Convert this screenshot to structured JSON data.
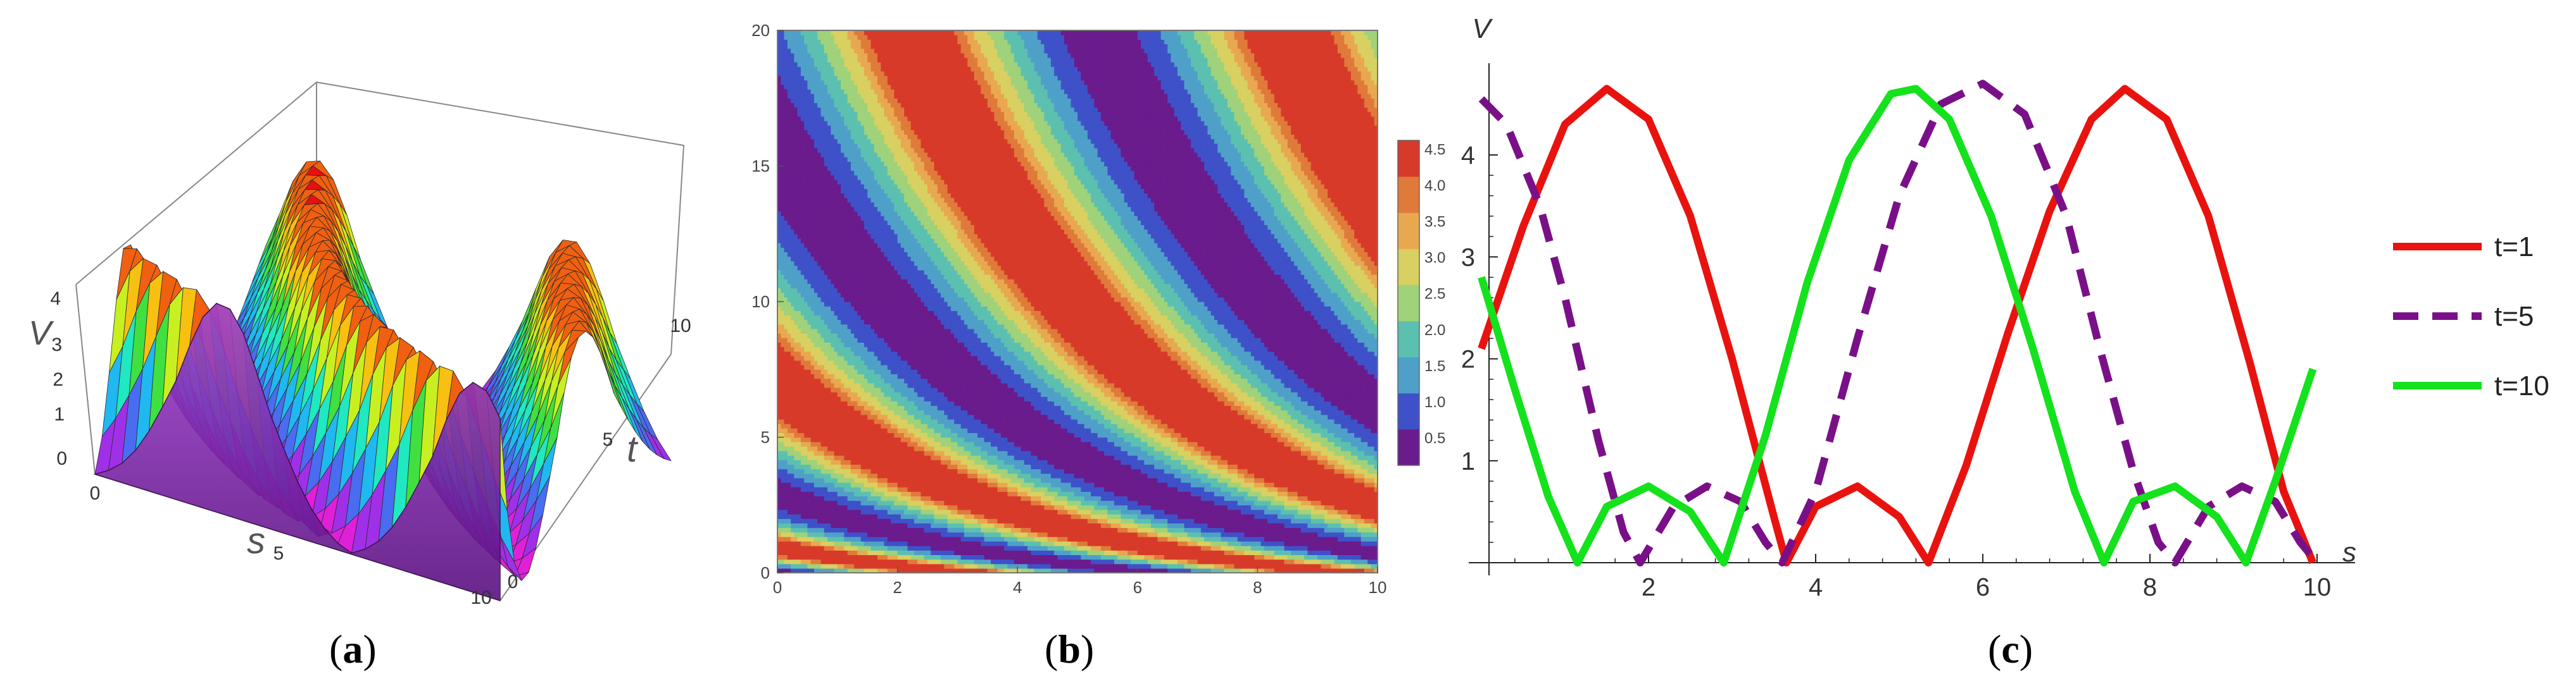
{
  "panels": {
    "a": {
      "label": "a"
    },
    "b": {
      "label": "b"
    },
    "c": {
      "label": "c"
    }
  },
  "chart_data": [
    {
      "type": "surface3d",
      "panel": "a",
      "xlabel": "s",
      "ylabel": "t",
      "zlabel": "V",
      "x_ticks": [
        "0",
        "5",
        "10"
      ],
      "y_ticks": [
        "0",
        "5",
        "10"
      ],
      "z_ticks": [
        "0",
        "1",
        "2",
        "3",
        "4"
      ],
      "xlim": [
        0,
        10
      ],
      "ylim": [
        0,
        10
      ],
      "zlim": [
        0,
        4.67
      ],
      "colormap": "rainbow",
      "ridge_peaks": [
        {
          "t": 0,
          "values": [
            2.1,
            4.67,
            0,
            0.75,
            0,
            4.67,
            0
          ]
        },
        {
          "t": 10,
          "values": [
            2.8,
            0,
            0.75,
            0,
            4.67,
            0,
            0.75
          ]
        }
      ]
    },
    {
      "type": "contour",
      "panel": "b",
      "x_ticks": [
        "0",
        "2",
        "4",
        "6",
        "8",
        "10"
      ],
      "y_ticks": [
        "0",
        "5",
        "10",
        "15",
        "20"
      ],
      "xlim": [
        0,
        10
      ],
      "ylim": [
        0,
        20
      ],
      "colorbar_ticks": [
        "0.5",
        "1.0",
        "1.5",
        "2.0",
        "2.5",
        "3.0",
        "3.5",
        "4.0",
        "4.5"
      ],
      "levels": [
        0.25,
        0.5,
        1.0,
        1.5,
        2.0,
        2.5,
        3.0,
        3.5,
        4.0,
        4.5
      ],
      "colors": [
        "#6a1b8c",
        "#3f51c8",
        "#4fa0c8",
        "#5cc0b0",
        "#9fd27a",
        "#d8d060",
        "#e8a850",
        "#e07a3a",
        "#d83a2a"
      ]
    },
    {
      "type": "line",
      "panel": "c",
      "title": "",
      "xlabel": "s",
      "ylabel": "V",
      "xlim": [
        0,
        10
      ],
      "ylim": [
        0,
        4.9
      ],
      "x_ticks": [
        "2",
        "4",
        "6",
        "8",
        "10"
      ],
      "y_ticks": [
        "1",
        "2",
        "3",
        "4"
      ],
      "legend_position": "right",
      "series": [
        {
          "name": "t=1",
          "color": "#e8130f",
          "style": "solid",
          "x": [
            0,
            0.5,
            1.0,
            1.5,
            2.0,
            2.5,
            3.0,
            3.5,
            3.65,
            4.0,
            4.5,
            5.0,
            5.35,
            5.8,
            6.3,
            6.8,
            7.3,
            7.7,
            8.2,
            8.7,
            9.2,
            9.6,
            9.95
          ],
          "values": [
            2.1,
            3.3,
            4.3,
            4.65,
            4.35,
            3.4,
            2.0,
            0.45,
            0.0,
            0.55,
            0.75,
            0.45,
            0.0,
            0.95,
            2.25,
            3.45,
            4.35,
            4.65,
            4.35,
            3.4,
            1.95,
            0.7,
            0.0
          ]
        },
        {
          "name": "t=5",
          "color": "#7a1088",
          "style": "dashed",
          "x": [
            0,
            0.3,
            0.7,
            1.0,
            1.4,
            1.7,
            1.9,
            2.3,
            2.7,
            3.1,
            3.4,
            3.6,
            4.0,
            4.5,
            5.0,
            5.5,
            6.0,
            6.5,
            7.0,
            7.4,
            7.8,
            8.1,
            8.3,
            8.7,
            9.1,
            9.5,
            9.8,
            10.0
          ],
          "values": [
            4.55,
            4.3,
            3.5,
            2.6,
            1.2,
            0.3,
            0.0,
            0.55,
            0.75,
            0.6,
            0.2,
            0.0,
            0.7,
            2.2,
            3.6,
            4.5,
            4.7,
            4.4,
            3.4,
            2.1,
            0.9,
            0.2,
            0.0,
            0.55,
            0.75,
            0.6,
            0.2,
            0.0
          ]
        },
        {
          "name": "t=10",
          "color": "#14e21c",
          "style": "solid",
          "x": [
            0,
            0.4,
            0.8,
            1.15,
            1.5,
            2.0,
            2.5,
            2.9,
            3.4,
            3.9,
            4.4,
            4.9,
            5.2,
            5.6,
            6.1,
            6.6,
            7.1,
            7.45,
            7.8,
            8.3,
            8.8,
            9.15,
            9.5,
            9.95
          ],
          "values": [
            2.8,
            1.7,
            0.65,
            0.0,
            0.55,
            0.75,
            0.5,
            0.0,
            1.25,
            2.75,
            3.95,
            4.6,
            4.65,
            4.35,
            3.4,
            2.1,
            0.7,
            0.0,
            0.6,
            0.75,
            0.45,
            0.0,
            0.8,
            1.9
          ]
        }
      ]
    }
  ]
}
